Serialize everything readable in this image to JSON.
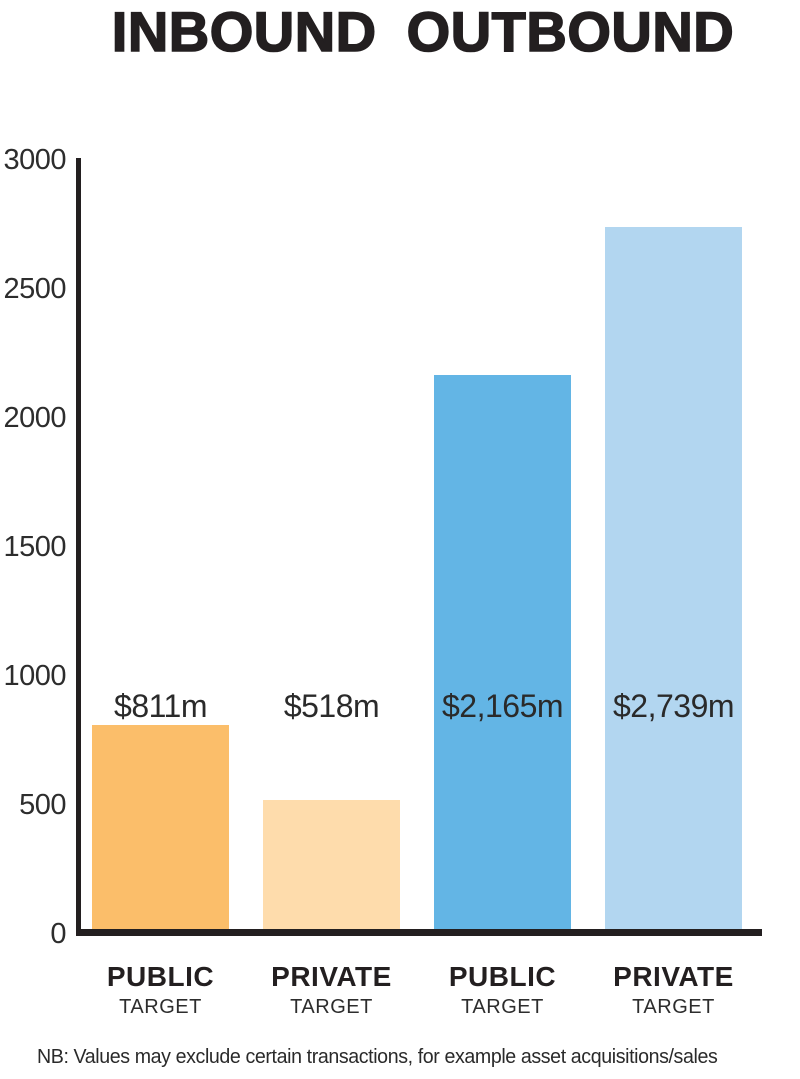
{
  "title": "INBOUND OUTBOUND",
  "note": "NB: Values may exclude certain transactions, for example asset acquisitions/sales",
  "colors": {
    "inbound_public": "#FBBE6A",
    "inbound_private": "#FEDCAC",
    "outbound_public": "#63B5E5",
    "outbound_private": "#B2D6F0",
    "axis": "#231F20",
    "text": "#231F20"
  },
  "chart_data": {
    "type": "bar",
    "title": "INBOUND OUTBOUND",
    "groups": [
      "INBOUND",
      "INBOUND",
      "OUTBOUND",
      "OUTBOUND"
    ],
    "categories": [
      "PUBLIC",
      "PRIVATE",
      "PUBLIC",
      "PRIVATE"
    ],
    "category_sublabels": [
      "TARGET",
      "TARGET",
      "TARGET",
      "TARGET"
    ],
    "values": [
      811,
      518,
      2165,
      2739
    ],
    "value_labels": [
      "$811m",
      "$518m",
      "$2,165m",
      "$2,739m"
    ],
    "bar_colors": [
      "#FBBE6A",
      "#FEDCAC",
      "#63B5E5",
      "#B2D6F0"
    ],
    "xlabel": "",
    "ylabel": "",
    "ylim": [
      0,
      3000
    ],
    "yticks": [
      0,
      500,
      1000,
      1500,
      2000,
      2500,
      3000
    ],
    "grid": false,
    "legend_position": "none",
    "unit": "millions of dollars"
  }
}
